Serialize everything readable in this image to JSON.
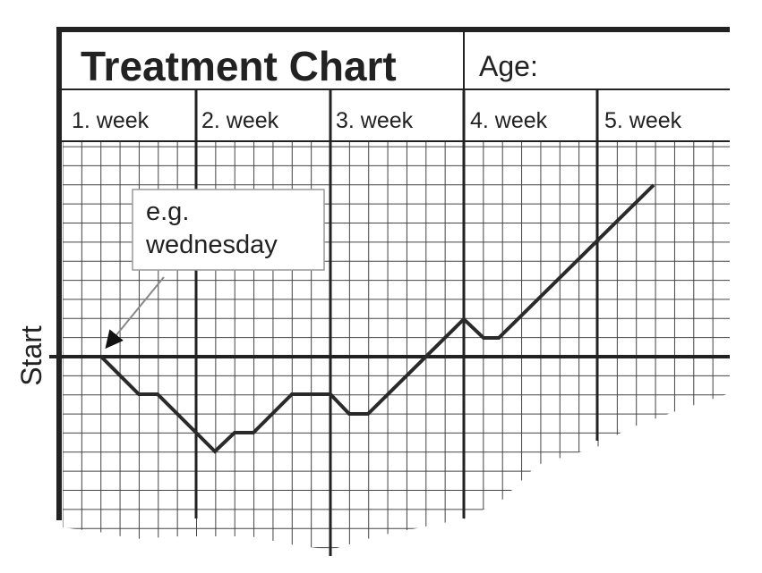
{
  "header": {
    "title": "Treatment Chart",
    "age_label": "Age:"
  },
  "weeks": [
    "1. week",
    "2. week",
    "3. week",
    "4. week",
    "5. week"
  ],
  "annotation": {
    "lines": [
      "e.g.",
      "wednesday"
    ]
  },
  "axis_label": "Start"
}
